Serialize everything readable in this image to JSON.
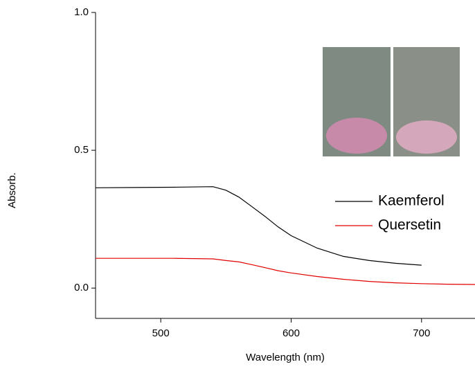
{
  "chart_data": {
    "type": "line",
    "x_label": "Wavelength (nm)",
    "y_label": "Absorb.",
    "x": [
      450,
      480,
      510,
      540,
      550,
      560,
      570,
      580,
      590,
      600,
      620,
      640,
      660,
      680,
      700,
      720,
      741
    ],
    "series": [
      {
        "name": "Kaemferol",
        "color": "#000000",
        "values": [
          0.364,
          0.365,
          0.366,
          0.368,
          0.355,
          0.33,
          0.295,
          0.26,
          0.222,
          0.19,
          0.145,
          0.115,
          0.1,
          0.09,
          0.083,
          null,
          null
        ]
      },
      {
        "name": "Quersetin",
        "color": "#e00000",
        "values": [
          0.108,
          0.108,
          0.108,
          0.106,
          0.1,
          0.095,
          0.085,
          0.074,
          0.063,
          0.055,
          0.042,
          0.032,
          0.024,
          0.019,
          0.016,
          0.014,
          0.013
        ]
      }
    ],
    "xlim": [
      450,
      741
    ],
    "xticks": [
      500,
      600,
      700
    ],
    "ylim": [
      -0.11,
      1.0
    ],
    "yticks": [
      {
        "value": 0,
        "label": "0.0"
      },
      {
        "value": 0.5,
        "label": "0.5"
      },
      {
        "value": 1,
        "label": "1.0"
      }
    ],
    "legend": "right"
  }
}
